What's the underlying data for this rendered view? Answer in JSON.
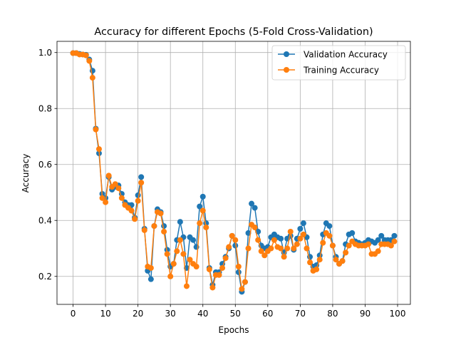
{
  "chart_data": {
    "type": "line",
    "title": "Accuracy for different Epochs (5-Fold Cross-Validation)",
    "xlabel": "Epochs",
    "ylabel": "Accuracy",
    "xlim": [
      -4.95,
      103.95
    ],
    "ylim": [
      0.1,
      1.04
    ],
    "xticks": [
      0,
      10,
      20,
      30,
      40,
      50,
      60,
      70,
      80,
      90,
      100
    ],
    "yticks": [
      0.2,
      0.4,
      0.6,
      0.8,
      1.0
    ],
    "ytick_labels": [
      "0.2",
      "0.4",
      "0.6",
      "0.8",
      "1.0"
    ],
    "grid": true,
    "legend": "top-right",
    "x": [
      0,
      1,
      2,
      3,
      4,
      5,
      6,
      7,
      8,
      9,
      10,
      11,
      12,
      13,
      14,
      15,
      16,
      17,
      18,
      19,
      20,
      21,
      22,
      23,
      24,
      25,
      26,
      27,
      28,
      29,
      30,
      31,
      32,
      33,
      34,
      35,
      36,
      37,
      38,
      39,
      40,
      41,
      42,
      43,
      44,
      45,
      46,
      47,
      48,
      49,
      50,
      51,
      52,
      53,
      54,
      55,
      56,
      57,
      58,
      59,
      60,
      61,
      62,
      63,
      64,
      65,
      66,
      67,
      68,
      69,
      70,
      71,
      72,
      73,
      74,
      75,
      76,
      77,
      78,
      79,
      80,
      81,
      82,
      83,
      84,
      85,
      86,
      87,
      88,
      89,
      90,
      91,
      92,
      93,
      94,
      95,
      96,
      97,
      98,
      99
    ],
    "series": [
      {
        "name": "Validation Accuracy",
        "color": "#1f77b4",
        "values": [
          0.998,
          0.998,
          0.995,
          0.993,
          0.992,
          0.975,
          0.935,
          0.728,
          0.64,
          0.495,
          0.48,
          0.555,
          0.51,
          0.52,
          0.525,
          0.495,
          0.465,
          0.455,
          0.455,
          0.41,
          0.49,
          0.555,
          0.37,
          0.22,
          0.19,
          0.38,
          0.44,
          0.43,
          0.38,
          0.295,
          0.235,
          0.245,
          0.33,
          0.395,
          0.34,
          0.23,
          0.34,
          0.33,
          0.305,
          0.45,
          0.485,
          0.39,
          0.23,
          0.17,
          0.215,
          0.215,
          0.245,
          0.27,
          0.3,
          0.345,
          0.31,
          0.215,
          0.145,
          0.18,
          0.355,
          0.46,
          0.445,
          0.36,
          0.31,
          0.3,
          0.305,
          0.34,
          0.35,
          0.34,
          0.335,
          0.285,
          0.335,
          0.345,
          0.295,
          0.335,
          0.37,
          0.39,
          0.34,
          0.27,
          0.235,
          0.24,
          0.275,
          0.35,
          0.39,
          0.38,
          0.31,
          0.27,
          0.245,
          0.255,
          0.315,
          0.35,
          0.355,
          0.325,
          0.32,
          0.315,
          0.32,
          0.33,
          0.325,
          0.32,
          0.33,
          0.345,
          0.33,
          0.33,
          0.33,
          0.345
        ]
      },
      {
        "name": "Training Accuracy",
        "color": "#ff7f0e",
        "values": [
          0.998,
          0.998,
          0.993,
          0.993,
          0.99,
          0.97,
          0.91,
          0.725,
          0.655,
          0.48,
          0.465,
          0.56,
          0.52,
          0.53,
          0.515,
          0.48,
          0.455,
          0.445,
          0.435,
          0.405,
          0.47,
          0.535,
          0.365,
          0.235,
          0.23,
          0.38,
          0.43,
          0.425,
          0.36,
          0.28,
          0.2,
          0.245,
          0.29,
          0.33,
          0.28,
          0.165,
          0.26,
          0.245,
          0.235,
          0.39,
          0.435,
          0.375,
          0.225,
          0.16,
          0.205,
          0.205,
          0.23,
          0.265,
          0.305,
          0.345,
          0.33,
          0.235,
          0.155,
          0.18,
          0.3,
          0.385,
          0.375,
          0.33,
          0.29,
          0.275,
          0.29,
          0.3,
          0.33,
          0.305,
          0.3,
          0.27,
          0.3,
          0.36,
          0.3,
          0.315,
          0.335,
          0.35,
          0.3,
          0.25,
          0.22,
          0.225,
          0.26,
          0.32,
          0.355,
          0.345,
          0.31,
          0.26,
          0.245,
          0.255,
          0.285,
          0.31,
          0.325,
          0.315,
          0.31,
          0.31,
          0.31,
          0.315,
          0.28,
          0.28,
          0.29,
          0.315,
          0.315,
          0.315,
          0.31,
          0.325
        ]
      }
    ]
  }
}
